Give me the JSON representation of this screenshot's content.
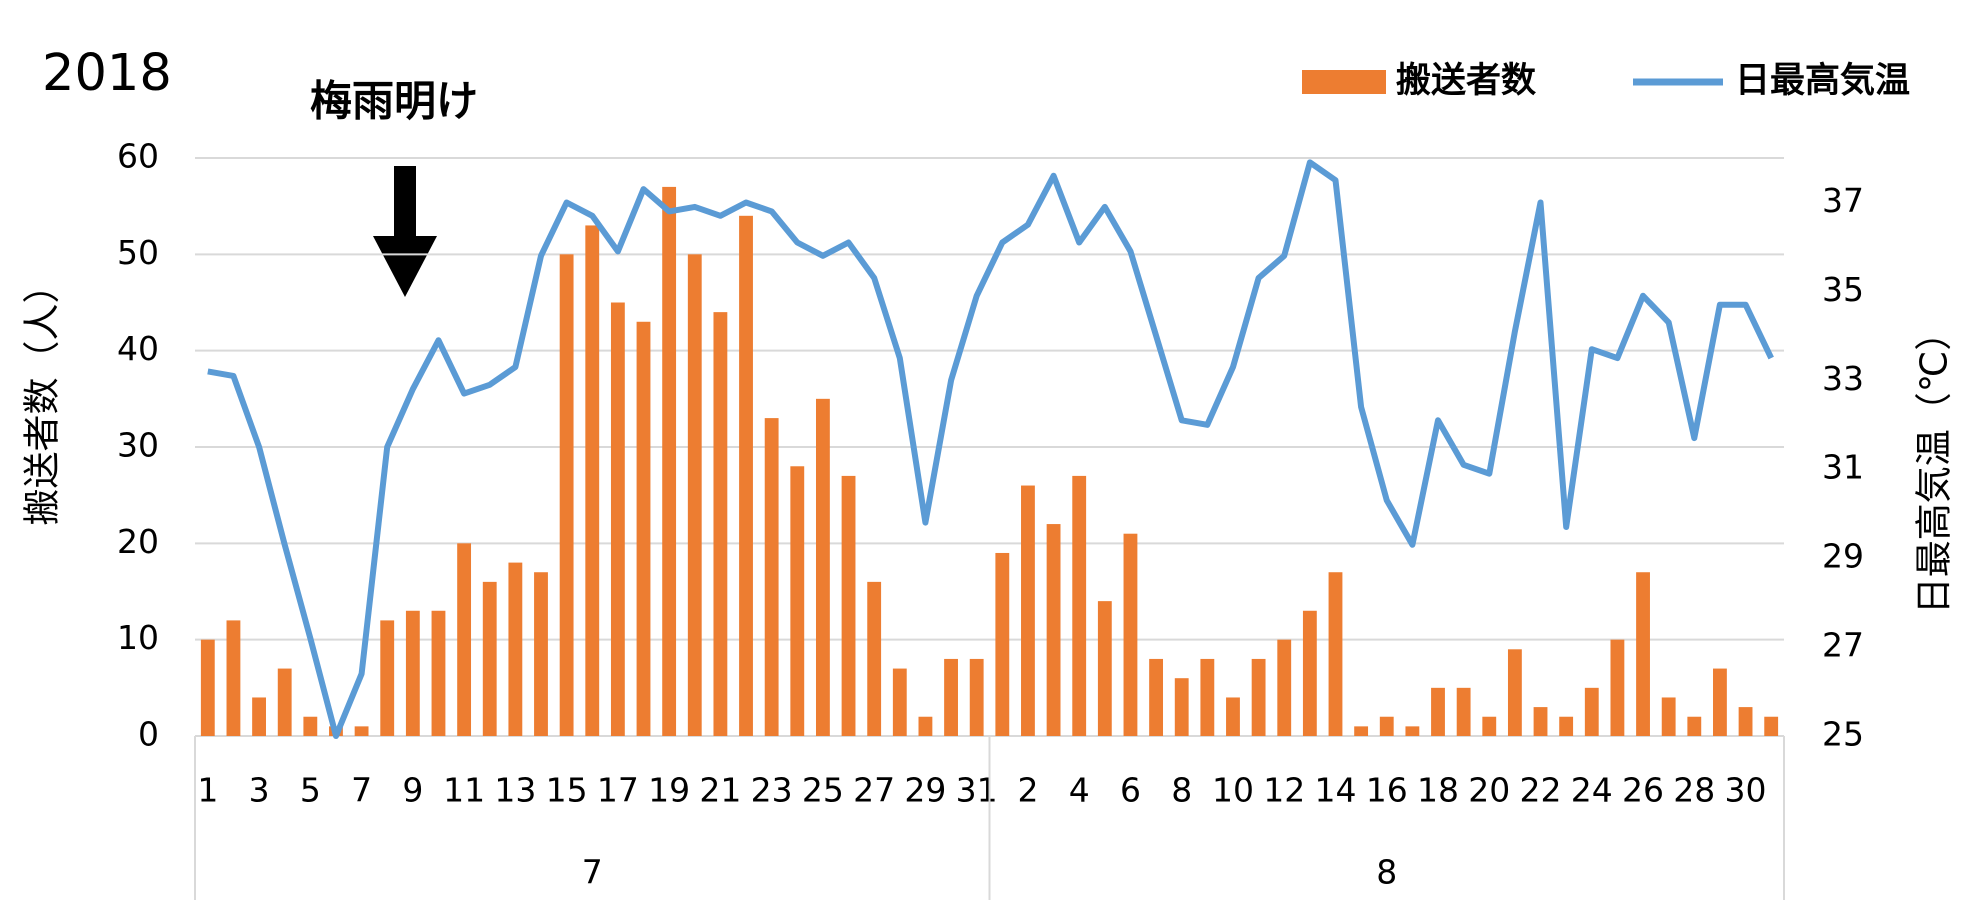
{
  "chart_data": {
    "type": "bar-line",
    "title": "2018",
    "annotation": "梅雨明け",
    "y_label": "搬送者数（人）",
    "y2_label": "日最高気温（℃）",
    "category_groups": [
      {
        "label": "7",
        "categories": [
          "1",
          null,
          "3",
          null,
          "5",
          null,
          "7",
          null,
          "9",
          null,
          "11",
          null,
          "13",
          null,
          "15",
          null,
          "17",
          null,
          "19",
          null,
          "21",
          null,
          "23",
          null,
          "25",
          null,
          "27",
          null,
          "29",
          null,
          "31"
        ]
      },
      {
        "label": "8",
        "categories": [
          null,
          "2",
          null,
          "4",
          null,
          "6",
          null,
          "8",
          null,
          "10",
          null,
          "12",
          null,
          "14",
          null,
          "16",
          null,
          "18",
          null,
          "20",
          null,
          "22",
          null,
          "24",
          null,
          "26",
          null,
          "28",
          null,
          "30",
          null
        ]
      }
    ],
    "series": [
      {
        "name": "搬送者数",
        "type": "bar",
        "color": "#ed7d31",
        "values": [
          10,
          12,
          4,
          7,
          2,
          1,
          1,
          12,
          13,
          13,
          20,
          16,
          18,
          17,
          50,
          53,
          45,
          43,
          57,
          50,
          44,
          54,
          33,
          28,
          35,
          27,
          16,
          7,
          2,
          8,
          8,
          19,
          26,
          22,
          27,
          14,
          21,
          8,
          6,
          8,
          4,
          8,
          10,
          13,
          17,
          1,
          2,
          1,
          5,
          5,
          2,
          9,
          3,
          2,
          5,
          10,
          17,
          4,
          2,
          7,
          3,
          2
        ]
      },
      {
        "name": "日最高気温",
        "type": "line",
        "axis": "y2",
        "color": "#5b9bd5",
        "values": [
          33.2,
          33.1,
          31.5,
          29.3,
          27.2,
          25.0,
          26.4,
          31.5,
          32.8,
          33.9,
          32.7,
          32.9,
          33.3,
          35.8,
          37.0,
          36.7,
          35.9,
          37.3,
          36.8,
          36.9,
          36.7,
          37.0,
          36.8,
          36.1,
          35.8,
          36.1,
          35.3,
          33.5,
          29.8,
          33.0,
          34.9,
          36.1,
          36.5,
          37.6,
          36.1,
          36.9,
          35.9,
          34.0,
          32.1,
          32.0,
          33.3,
          35.3,
          35.8,
          37.9,
          37.5,
          32.4,
          30.3,
          29.3,
          32.1,
          31.1,
          30.9,
          34.1,
          37.0,
          29.7,
          33.7,
          33.5,
          34.9,
          34.3,
          31.7,
          34.7,
          34.7,
          33.5
        ]
      }
    ],
    "ylim": [
      0,
      60
    ],
    "yticks": [
      0,
      10,
      20,
      30,
      40,
      50,
      60
    ],
    "y2lim": [
      25,
      38
    ],
    "y2ticks": [
      25,
      27,
      29,
      31,
      33,
      35,
      37
    ],
    "grid": true,
    "legend": "top-right"
  }
}
